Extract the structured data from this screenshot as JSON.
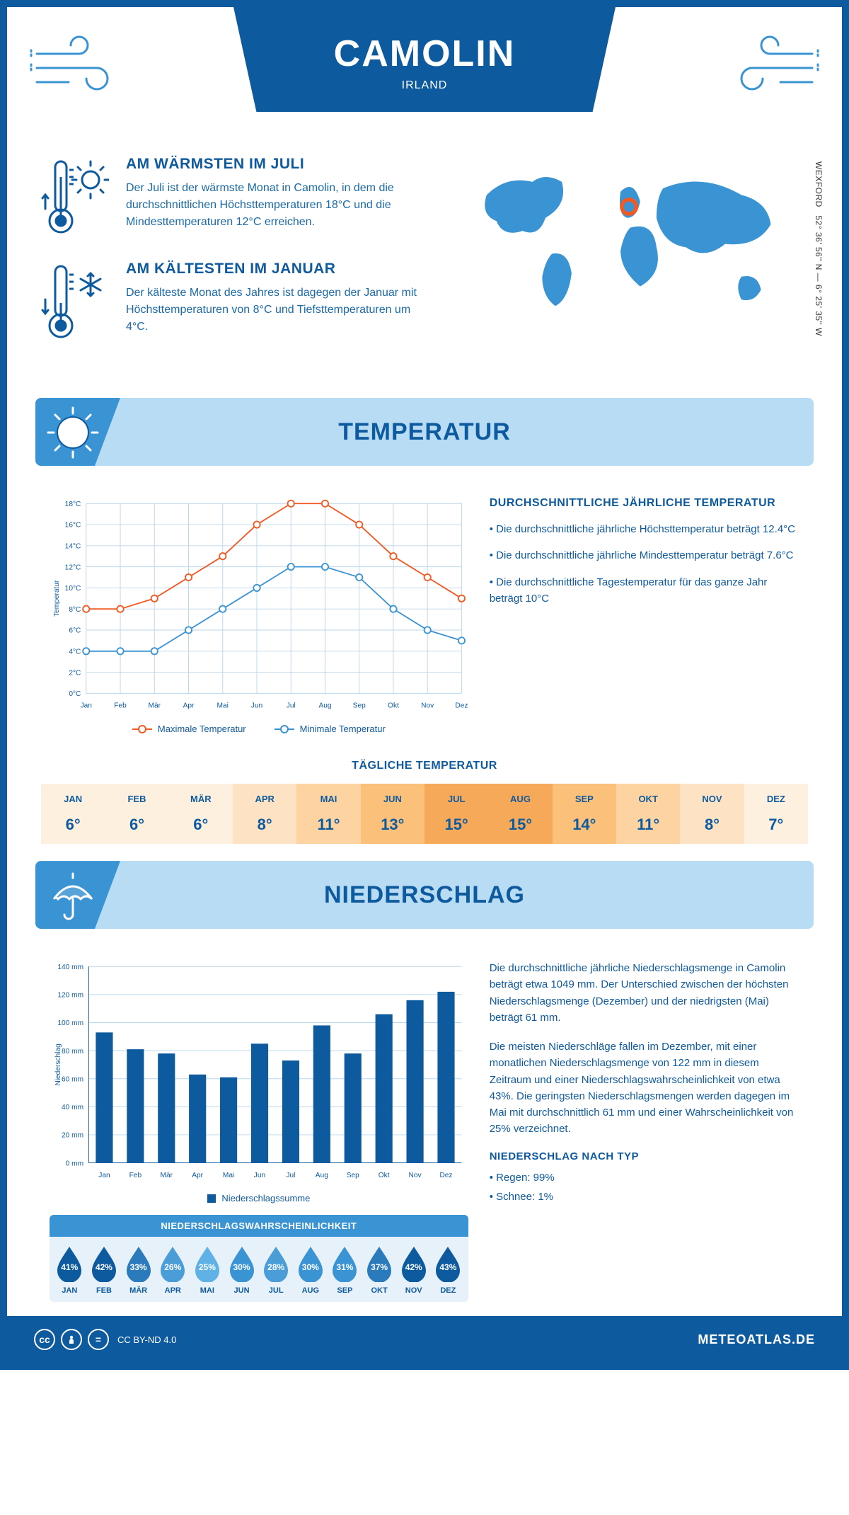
{
  "header": {
    "title": "CAMOLIN",
    "subtitle": "IRLAND"
  },
  "coords": {
    "lat": "52° 36' 56'' N — 6° 25' 35'' W",
    "place": "WEXFORD"
  },
  "warm": {
    "title": "AM WÄRMSTEN IM JULI",
    "text": "Der Juli ist der wärmste Monat in Camolin, in dem die durchschnittlichen Höchsttemperaturen 18°C und die Mindesttemperaturen 12°C erreichen."
  },
  "cold": {
    "title": "AM KÄLTESTEN IM JANUAR",
    "text": "Der kälteste Monat des Jahres ist dagegen der Januar mit Höchsttemperaturen von 8°C und Tiefsttemperaturen um 4°C."
  },
  "temp_section": {
    "heading": "TEMPERATUR",
    "side_title": "DURCHSCHNITTLICHE JÄHRLICHE TEMPERATUR",
    "bullet1": "• Die durchschnittliche jährliche Höchsttemperatur beträgt 12.4°C",
    "bullet2": "• Die durchschnittliche jährliche Mindesttemperatur beträgt 7.6°C",
    "bullet3": "• Die durchschnittliche Tagestemperatur für das ganze Jahr beträgt 10°C",
    "legend_max": "Maximale Temperatur",
    "legend_min": "Minimale Temperatur",
    "daily_title": "TÄGLICHE TEMPERATUR",
    "y_axis_label": "Temperatur"
  },
  "temp_chart": {
    "type": "line",
    "months": [
      "Jan",
      "Feb",
      "Mär",
      "Apr",
      "Mai",
      "Jun",
      "Jul",
      "Aug",
      "Sep",
      "Okt",
      "Nov",
      "Dez"
    ],
    "max": [
      8,
      8,
      9,
      11,
      13,
      16,
      18,
      18,
      16,
      13,
      11,
      9
    ],
    "min": [
      4,
      4,
      4,
      6,
      8,
      10,
      12,
      12,
      11,
      8,
      6,
      5
    ],
    "ylim": [
      0,
      18
    ],
    "ytick_step": 2,
    "ytick_labels": [
      "0°C",
      "2°C",
      "4°C",
      "6°C",
      "8°C",
      "10°C",
      "12°C",
      "14°C",
      "16°C",
      "18°C"
    ],
    "colors": {
      "max": "#f15a24",
      "min": "#3a94d4",
      "grid": "#bcd6ea",
      "axis": "#0e5a9e"
    },
    "line_width": 2,
    "marker_size": 5
  },
  "daily_temp": {
    "months": [
      "JAN",
      "FEB",
      "MÄR",
      "APR",
      "MAI",
      "JUN",
      "JUL",
      "AUG",
      "SEP",
      "OKT",
      "NOV",
      "DEZ"
    ],
    "values": [
      "6°",
      "6°",
      "6°",
      "8°",
      "11°",
      "13°",
      "15°",
      "15°",
      "14°",
      "11°",
      "8°",
      "7°"
    ],
    "cell_colors": [
      "#fdf0de",
      "#fdf0de",
      "#fdf0de",
      "#fde3c4",
      "#fcd3a1",
      "#fbc07a",
      "#f7a95a",
      "#f7a95a",
      "#fbc07a",
      "#fcd3a1",
      "#fde3c4",
      "#fdf0de"
    ]
  },
  "precip_section": {
    "heading": "NIEDERSCHLAG",
    "para1": "Die durchschnittliche jährliche Niederschlagsmenge in Camolin beträgt etwa 1049 mm. Der Unterschied zwischen der höchsten Niederschlagsmenge (Dezember) und der niedrigsten (Mai) beträgt 61 mm.",
    "para2": "Die meisten Niederschläge fallen im Dezember, mit einer monatlichen Niederschlagsmenge von 122 mm in diesem Zeitraum und einer Niederschlagswahrscheinlichkeit von etwa 43%. Die geringsten Niederschlagsmengen werden dagegen im Mai mit durchschnittlich 61 mm und einer Wahrscheinlichkeit von 25% verzeichnet.",
    "type_title": "NIEDERSCHLAG NACH TYP",
    "type1": "• Regen: 99%",
    "type2": "• Schnee: 1%",
    "prob_title": "NIEDERSCHLAGSWAHRSCHEINLICHKEIT",
    "legend": "Niederschlagssumme",
    "y_axis_label": "Niederschlag"
  },
  "precip_chart": {
    "type": "bar",
    "months": [
      "Jan",
      "Feb",
      "Mär",
      "Apr",
      "Mai",
      "Jun",
      "Jul",
      "Aug",
      "Sep",
      "Okt",
      "Nov",
      "Dez"
    ],
    "values": [
      93,
      81,
      78,
      63,
      61,
      85,
      73,
      98,
      78,
      106,
      116,
      122
    ],
    "ylim": [
      0,
      140
    ],
    "ytick_step": 20,
    "ytick_labels": [
      "0 mm",
      "20 mm",
      "40 mm",
      "60 mm",
      "80 mm",
      "100 mm",
      "120 mm",
      "140 mm"
    ],
    "bar_color": "#0e5a9e",
    "grid_color": "#bcd6ea",
    "bar_width": 0.55
  },
  "precip_prob": {
    "months": [
      "JAN",
      "FEB",
      "MÄR",
      "APR",
      "MAI",
      "JUN",
      "JUL",
      "AUG",
      "SEP",
      "OKT",
      "NOV",
      "DEZ"
    ],
    "values": [
      "41%",
      "42%",
      "33%",
      "26%",
      "25%",
      "30%",
      "28%",
      "30%",
      "31%",
      "37%",
      "42%",
      "43%"
    ],
    "colors": [
      "#0e5a9e",
      "#0e5a9e",
      "#2b7abb",
      "#4b9dd7",
      "#5fb1e6",
      "#3a94d4",
      "#4b9dd7",
      "#3a94d4",
      "#3a94d4",
      "#2b7abb",
      "#0e5a9e",
      "#0e5a9e"
    ]
  },
  "footer": {
    "license": "CC BY-ND 4.0",
    "site": "METEOATLAS.DE"
  },
  "palette": {
    "primary": "#0e5a9e",
    "light": "#b8dcf3",
    "mid": "#3a94d4"
  }
}
